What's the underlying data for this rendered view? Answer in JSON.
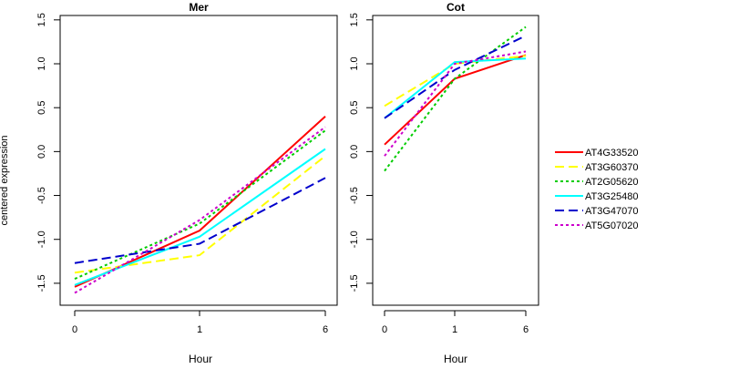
{
  "chart_data": [
    {
      "type": "line",
      "title": "Mer",
      "xlabel": "Hour",
      "ylabel": "centered expression",
      "categories": [
        "0",
        "1",
        "6"
      ],
      "ylim": [
        -1.75,
        1.55
      ],
      "yticks": [
        "-1.5",
        "-1.0",
        "-0.5",
        "0.0",
        "0.5",
        "1.0",
        "1.5"
      ],
      "series": [
        {
          "name": "AT4G33520",
          "values": [
            -1.54,
            -0.9,
            0.4
          ]
        },
        {
          "name": "AT3G60370",
          "values": [
            -1.38,
            -1.18,
            -0.05
          ]
        },
        {
          "name": "AT2G05620",
          "values": [
            -1.45,
            -0.82,
            0.24
          ]
        },
        {
          "name": "AT3G25480",
          "values": [
            -1.52,
            -0.97,
            0.03
          ]
        },
        {
          "name": "AT3G47070",
          "values": [
            -1.27,
            -1.05,
            -0.3
          ]
        },
        {
          "name": "AT5G07020",
          "values": [
            -1.61,
            -0.78,
            0.28
          ]
        }
      ]
    },
    {
      "type": "line",
      "title": "Cot",
      "xlabel": "Hour",
      "ylabel": "",
      "categories": [
        "0",
        "1",
        "6"
      ],
      "ylim": [
        -1.75,
        1.55
      ],
      "yticks": [
        "-1.5",
        "-1.0",
        "-0.5",
        "0.0",
        "0.5",
        "1.0",
        "1.5"
      ],
      "series": [
        {
          "name": "AT4G33520",
          "values": [
            0.08,
            0.83,
            1.1
          ]
        },
        {
          "name": "AT3G60370",
          "values": [
            0.52,
            1.0,
            1.09
          ]
        },
        {
          "name": "AT2G05620",
          "values": [
            -0.22,
            0.83,
            1.42
          ]
        },
        {
          "name": "AT3G25480",
          "values": [
            0.38,
            1.02,
            1.06
          ]
        },
        {
          "name": "AT3G47070",
          "values": [
            0.38,
            0.93,
            1.32
          ]
        },
        {
          "name": "AT5G07020",
          "values": [
            -0.05,
            1.0,
            1.14
          ]
        }
      ]
    }
  ],
  "legend": {
    "placement": "right",
    "entries": [
      {
        "name": "AT4G33520",
        "color": "#ff0000",
        "dash": "solid"
      },
      {
        "name": "AT3G60370",
        "color": "#ffff00",
        "dash": "long-dash"
      },
      {
        "name": "AT2G05620",
        "color": "#00cc00",
        "dash": "dotted"
      },
      {
        "name": "AT3G25480",
        "color": "#00ffff",
        "dash": "solid"
      },
      {
        "name": "AT3G47070",
        "color": "#0000cc",
        "dash": "long-dash"
      },
      {
        "name": "AT5G07020",
        "color": "#cc00cc",
        "dash": "dotted"
      }
    ]
  }
}
